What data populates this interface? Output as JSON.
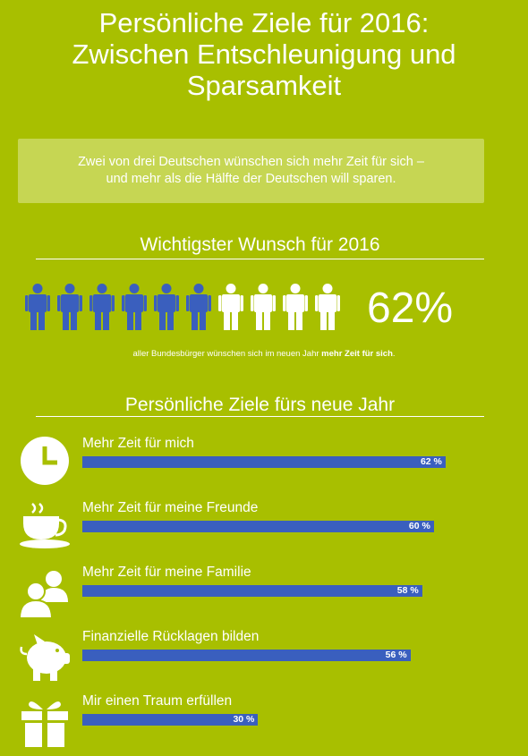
{
  "title": "Persönliche Ziele für 2016:\nZwischen Entschleunigung und\nSparsamkeit",
  "callout": "Zwei von drei Deutschen wünschen sich mehr Zeit für sich –\nund mehr als die Hälfte der Deutschen will sparen.",
  "section1": {
    "title": "Wichtigster Wunsch für 2016",
    "big_value": "62%",
    "note_prefix": "aller Bundesbürger wünschen sich im neuen Jahr ",
    "note_bold": "mehr Zeit für sich",
    "note_suffix": "."
  },
  "section2": {
    "title": "Persönliche Ziele fürs neue Jahr"
  },
  "colors": {
    "background": "#a8bf00",
    "bar": "#3a5fbe",
    "person_filled": "#3a5fbe",
    "person_empty": "#ffffff"
  },
  "chart_data": [
    {
      "type": "pictograph",
      "total_icons": 10,
      "filled_icons": 6,
      "icon": "person-icon",
      "value": 62,
      "unit": "%"
    },
    {
      "type": "bar",
      "orientation": "horizontal",
      "categories": [
        "Mehr Zeit für mich",
        "Mehr Zeit für meine Freunde",
        "Mehr Zeit für meine Familie",
        "Finanzielle Rücklagen bilden",
        "Mir einen Traum erfüllen"
      ],
      "values": [
        62,
        60,
        58,
        56,
        30
      ],
      "value_labels": [
        "62 %",
        "60 %",
        "58 %",
        "56 %",
        "30 %"
      ],
      "icons": [
        "clock-icon",
        "coffee-cup-icon",
        "family-icon",
        "piggy-bank-icon",
        "gift-icon"
      ],
      "xlim": [
        0,
        100
      ],
      "grid": false
    }
  ]
}
